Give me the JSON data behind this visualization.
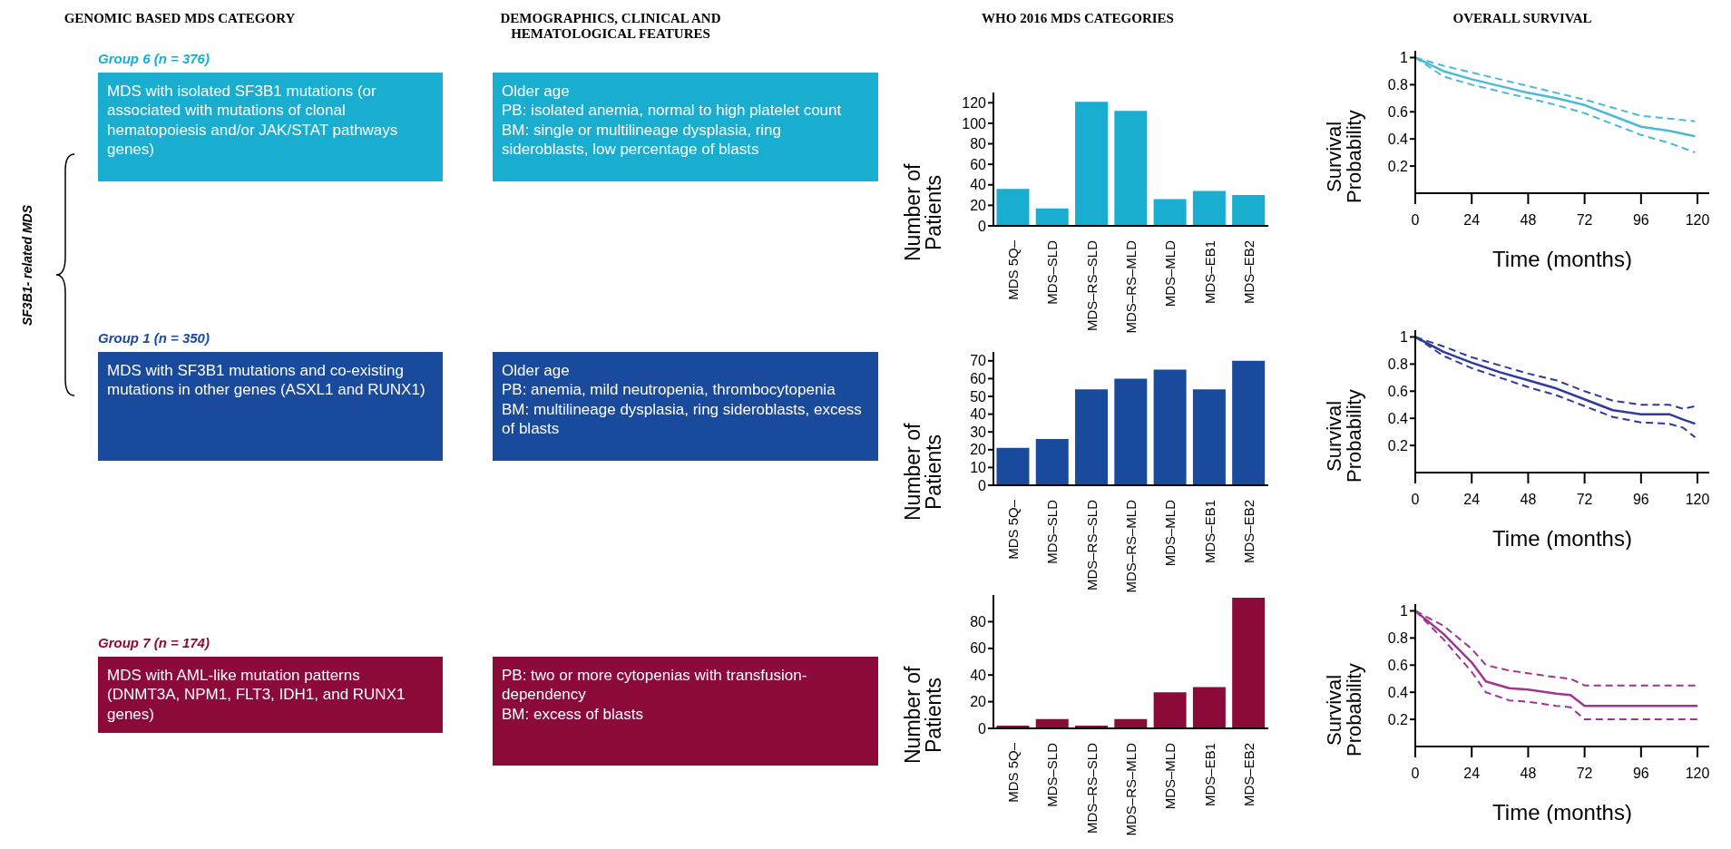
{
  "chart_data": [
    {
      "type": "other",
      "annotations": [
        "GENOMIC BASED MDS CATEGORY",
        "DEMOGRAPHICS, CLINICAL AND HEMATOLOGICAL FEATURES",
        "WHO 2016 MDS CATEGORIES",
        "OVERALL SURVIVAL",
        "SF3B1- related MDS"
      ]
    },
    {
      "type": "other",
      "title": "Group 6 (n = 376)",
      "color": "#19aed0",
      "annotations": [
        "MDS with isolated SF3B1 mutations (or associated with mutations of clonal hematopoiesis and/or JAK/STAT pathways genes)",
        "Older age\nPB: isolated anemia, normal to high platelet count\nBM: single or multilineage dysplasia, ring sideroblasts, low percentage of blasts"
      ]
    },
    {
      "type": "bar",
      "ylabel": "Number of Patients",
      "color": "#19aed0",
      "categories": [
        "MDS 5Q–",
        "MDS–SLD",
        "MDS–RS–SLD",
        "MDS–RS–MLD",
        "MDS–MLD",
        "MDS–EB1",
        "MDS–EB2"
      ],
      "values": [
        36,
        17,
        121,
        112,
        26,
        34,
        30
      ],
      "ylim": [
        0,
        130
      ],
      "yticks": [
        0,
        20,
        40,
        60,
        80,
        100,
        120
      ]
    },
    {
      "type": "line",
      "ylabel": "Survival Probability",
      "xlabel": "Time (months)",
      "x": [
        0,
        12,
        24,
        36,
        48,
        60,
        72,
        84,
        96,
        108,
        119
      ],
      "xlim": [
        0,
        125
      ],
      "xticks": [
        0,
        24,
        48,
        72,
        96,
        120
      ],
      "ylim": [
        0,
        1.05
      ],
      "yticks": [
        0.2,
        0.4,
        0.6,
        0.8,
        1
      ],
      "series": [
        {
          "color": "#4bbad9",
          "values": [
            1,
            0.9,
            0.84,
            0.79,
            0.74,
            0.7,
            0.65,
            0.57,
            0.49,
            0.46,
            0.42
          ]
        },
        {
          "color": "#4bbad9",
          "line_style": "dashed",
          "values": [
            1,
            0.86,
            0.8,
            0.75,
            0.7,
            0.65,
            0.59,
            0.51,
            0.43,
            0.37,
            0.3
          ]
        },
        {
          "color": "#4bbad9",
          "line_style": "dashed",
          "values": [
            1,
            0.94,
            0.89,
            0.84,
            0.79,
            0.74,
            0.69,
            0.63,
            0.57,
            0.55,
            0.53
          ]
        }
      ]
    },
    {
      "type": "other",
      "title": "Group 1 (n = 350)",
      "color": "#1a4a9c",
      "annotations": [
        "MDS with SF3B1 mutations and co-existing mutations in other genes (ASXL1 and RUNX1)",
        "Older age\nPB: anemia, mild neutropenia, thrombocytopenia\nBM: multilineage dysplasia, ring sideroblasts, excess of blasts"
      ]
    },
    {
      "type": "bar",
      "ylabel": "Number of Patients",
      "color": "#1a4a9c",
      "categories": [
        "MDS 5Q–",
        "MDS–SLD",
        "MDS–RS–SLD",
        "MDS–RS–MLD",
        "MDS–MLD",
        "MDS–EB1",
        "MDS–EB2"
      ],
      "values": [
        21,
        26,
        54,
        60,
        65,
        54,
        70
      ],
      "ylim": [
        0,
        75
      ],
      "yticks": [
        0,
        10,
        20,
        30,
        40,
        50,
        60,
        70
      ]
    },
    {
      "type": "line",
      "ylabel": "Survival Probability",
      "xlabel": "Time (months)",
      "x": [
        0,
        12,
        24,
        36,
        48,
        60,
        72,
        84,
        96,
        108,
        114,
        119
      ],
      "xlim": [
        0,
        125
      ],
      "xticks": [
        0,
        24,
        48,
        72,
        96,
        120
      ],
      "ylim": [
        0,
        1.05
      ],
      "yticks": [
        0.2,
        0.4,
        0.6,
        0.8,
        1
      ],
      "series": [
        {
          "color": "#2f3a9f",
          "values": [
            1,
            0.89,
            0.81,
            0.74,
            0.68,
            0.62,
            0.54,
            0.46,
            0.43,
            0.43,
            0.39,
            0.36
          ]
        },
        {
          "color": "#2f3a9f",
          "line_style": "dashed",
          "values": [
            1,
            0.86,
            0.77,
            0.7,
            0.63,
            0.57,
            0.49,
            0.41,
            0.37,
            0.36,
            0.33,
            0.26
          ]
        },
        {
          "color": "#2f3a9f",
          "line_style": "dashed",
          "values": [
            1,
            0.93,
            0.85,
            0.79,
            0.73,
            0.68,
            0.6,
            0.53,
            0.5,
            0.5,
            0.47,
            0.49
          ]
        }
      ]
    },
    {
      "type": "other",
      "title": "Group 7 (n = 174)",
      "color": "#8c0a3a",
      "annotations": [
        "MDS with AML-like mutation patterns (DNMT3A, NPM1, FLT3, IDH1, and RUNX1 genes)",
        "PB: two or more cytopenias with transfusion-dependency\nBM: excess of blasts"
      ]
    },
    {
      "type": "bar",
      "ylabel": "Number of Patients",
      "color": "#8c0a3a",
      "categories": [
        "MDS 5Q–",
        "MDS–SLD",
        "MDS–RS–SLD",
        "MDS–RS–MLD",
        "MDS–MLD",
        "MDS–EB1",
        "MDS–EB2"
      ],
      "values": [
        2,
        7,
        2,
        7,
        27,
        31,
        98
      ],
      "ylim": [
        0,
        100
      ],
      "yticks": [
        0,
        20,
        40,
        60,
        80
      ]
    },
    {
      "type": "line",
      "ylabel": "Survival Probability",
      "xlabel": "Time (months)",
      "x": [
        0,
        12,
        24,
        30,
        40,
        48,
        60,
        66,
        72,
        96,
        120
      ],
      "xlim": [
        0,
        125
      ],
      "xticks": [
        0,
        24,
        48,
        72,
        96,
        120
      ],
      "ylim": [
        0,
        1.05
      ],
      "yticks": [
        0.2,
        0.4,
        0.6,
        0.8,
        1
      ],
      "series": [
        {
          "color": "#a2338f",
          "values": [
            1,
            0.83,
            0.62,
            0.48,
            0.43,
            0.42,
            0.39,
            0.38,
            0.3,
            0.3,
            0.3
          ]
        },
        {
          "color": "#a2338f",
          "line_style": "dashed",
          "values": [
            1,
            0.79,
            0.55,
            0.4,
            0.34,
            0.33,
            0.3,
            0.29,
            0.2,
            0.2,
            0.2
          ]
        },
        {
          "color": "#a2338f",
          "line_style": "dashed",
          "values": [
            1,
            0.89,
            0.72,
            0.6,
            0.56,
            0.54,
            0.51,
            0.5,
            0.45,
            0.45,
            0.45
          ]
        }
      ]
    }
  ]
}
